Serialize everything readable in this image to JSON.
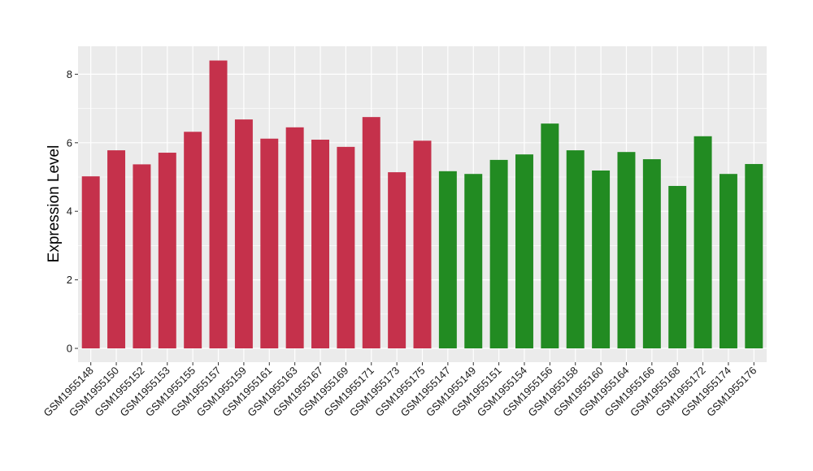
{
  "chart_data": {
    "type": "bar",
    "title": "",
    "xlabel": "",
    "ylabel": "Expression Level",
    "ylim": [
      0,
      8.8
    ],
    "yticks": [
      0,
      2,
      4,
      6,
      8
    ],
    "grid": true,
    "legend": "none",
    "panel_background": "#EBEBEB",
    "grid_color": "#FFFFFF",
    "series_colors": [
      "#C5314B",
      "#228B22"
    ],
    "categories": [
      "GSM1955148",
      "GSM1955150",
      "GSM1955152",
      "GSM1955153",
      "GSM1955155",
      "GSM1955157",
      "GSM1955159",
      "GSM1955161",
      "GSM1955163",
      "GSM1955167",
      "GSM1955169",
      "GSM1955171",
      "GSM1955173",
      "GSM1955175",
      "GSM1955147",
      "GSM1955149",
      "GSM1955151",
      "GSM1955154",
      "GSM1955156",
      "GSM1955158",
      "GSM1955160",
      "GSM1955164",
      "GSM1955166",
      "GSM1955168",
      "GSM1955172",
      "GSM1955174",
      "GSM1955176"
    ],
    "values": [
      5.02,
      5.78,
      5.37,
      5.71,
      6.32,
      8.4,
      6.68,
      6.12,
      6.45,
      6.09,
      5.88,
      6.75,
      5.14,
      6.06,
      5.17,
      5.09,
      5.5,
      5.66,
      6.56,
      5.78,
      5.19,
      5.73,
      5.52,
      4.74,
      6.19,
      5.09,
      5.38
    ],
    "groups": [
      0,
      0,
      0,
      0,
      0,
      0,
      0,
      0,
      0,
      0,
      0,
      0,
      0,
      0,
      1,
      1,
      1,
      1,
      1,
      1,
      1,
      1,
      1,
      1,
      1,
      1,
      1
    ]
  }
}
